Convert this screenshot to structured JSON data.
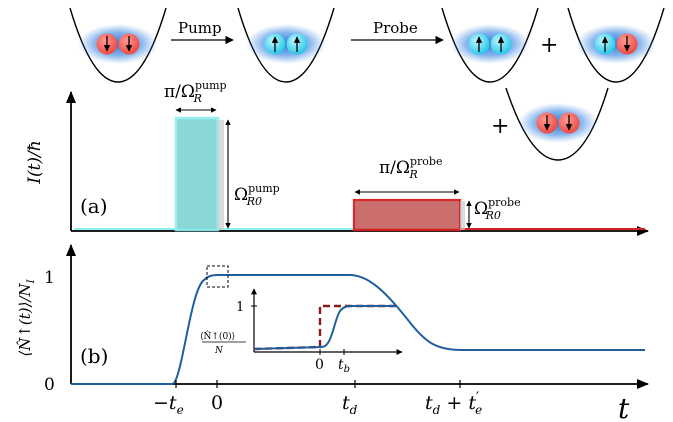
{
  "top": {
    "pump_label": "Pump",
    "probe_label": "Probe",
    "plus": "+"
  },
  "panel_a": {
    "tag": "(a)",
    "ylabel": "I(t)/ħ",
    "pump_width": "π/Ω",
    "pump_width_sup": "pump",
    "pump_width_sub": "R",
    "pump_height": "Ω",
    "pump_height_sup": "pump",
    "pump_height_sub": "R0",
    "probe_width": "π/Ω",
    "probe_width_sup": "probe",
    "probe_width_sub": "R",
    "probe_height": "Ω",
    "probe_height_sup": "probe",
    "probe_height_sub": "R0",
    "colors": {
      "pump": "#7fd3d3",
      "probe": "#c9474a",
      "pump_edge": "#8feeee",
      "probe_edge": "#d42020"
    }
  },
  "panel_b": {
    "tag": "(b)",
    "ylabel": "⟨N̂↑(t)⟩/N",
    "ylabel_sub": "I",
    "y_tick_1": "1",
    "y_tick_0": "0",
    "xlabel": "t",
    "x_ticks": {
      "minus_te": "−t",
      "minus_te_sub": "e",
      "zero": "0",
      "td": "t",
      "td_sub": "d",
      "td_te": "t",
      "td_te_sub": "d",
      "td_te_plus": " + t",
      "td_te_plus_sub": "e",
      "prime": "′"
    },
    "inset": {
      "y_tick": "1",
      "ylabel_num": "⟨N̂↑(0)⟩",
      "ylabel_den": "N",
      "ylabel_den_sub": "I",
      "x_tick_0": "0",
      "x_tick_tb": "t",
      "x_tick_tb_sub": "b"
    },
    "colors": {
      "curve": "#1f5f9e",
      "dashed": "#8b1a1a"
    }
  }
}
